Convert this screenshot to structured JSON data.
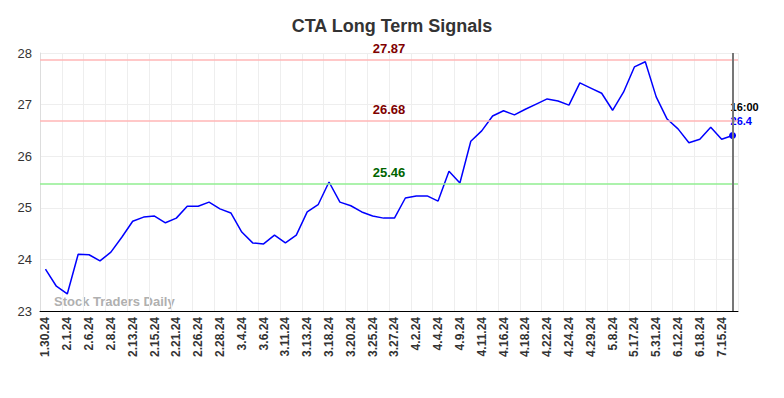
{
  "chart_data": {
    "type": "line",
    "title": "CTA Long Term Signals",
    "watermark": "Stock Traders Daily",
    "categories": [
      "1.30.24",
      null,
      "2.1.24",
      null,
      "2.6.24",
      null,
      "2.8.24",
      null,
      "2.13.24",
      null,
      "2.15.24",
      null,
      "2.21.24",
      null,
      "2.26.24",
      null,
      "2.28.24",
      null,
      "3.4.24",
      null,
      "3.6.24",
      null,
      "3.11.24",
      null,
      "3.13.24",
      null,
      "3.18.24",
      null,
      "3.20.24",
      null,
      "3.25.24",
      null,
      "3.27.24",
      null,
      "4.2.24",
      null,
      "4.4.24",
      null,
      "4.9.24",
      null,
      "4.11.24",
      null,
      "4.16.24",
      null,
      "4.18.24",
      null,
      "4.22.24",
      null,
      "4.24.24",
      null,
      "4.29.24",
      null,
      "5.8.24",
      null,
      "5.17.24",
      null,
      "5.31.24",
      null,
      "6.12.24",
      null,
      "6.18.24",
      null,
      "7.15.24",
      null
    ],
    "values": [
      23.81,
      23.48,
      23.33,
      24.1,
      24.09,
      23.97,
      24.14,
      24.43,
      24.74,
      24.82,
      24.84,
      24.71,
      24.8,
      25.03,
      25.03,
      25.11,
      24.98,
      24.9,
      24.53,
      24.32,
      24.3,
      24.47,
      24.32,
      24.47,
      24.92,
      25.06,
      25.5,
      25.11,
      25.04,
      24.92,
      24.84,
      24.8,
      24.8,
      25.19,
      25.23,
      25.23,
      25.13,
      25.71,
      25.48,
      26.29,
      26.49,
      26.78,
      26.88,
      26.8,
      26.91,
      27.01,
      27.11,
      27.07,
      26.99,
      27.42,
      27.32,
      27.22,
      26.89,
      27.24,
      27.73,
      27.83,
      27.15,
      26.72,
      26.53,
      26.26,
      26.33,
      26.56,
      26.33,
      26.4
    ],
    "color": "#0000ff",
    "last_point_time": "16:00",
    "horizontal_lines": [
      {
        "value": 27.87,
        "color": "#ffb6b6",
        "label_color": "#800000"
      },
      {
        "value": 26.68,
        "color": "#ffb6b6",
        "label_color": "#800000"
      },
      {
        "value": 25.46,
        "color": "#90ee90",
        "label_color": "#006400"
      }
    ],
    "ylim": [
      23,
      28
    ],
    "yticks": [
      23,
      24,
      25,
      26,
      27,
      28
    ],
    "grid": true
  }
}
